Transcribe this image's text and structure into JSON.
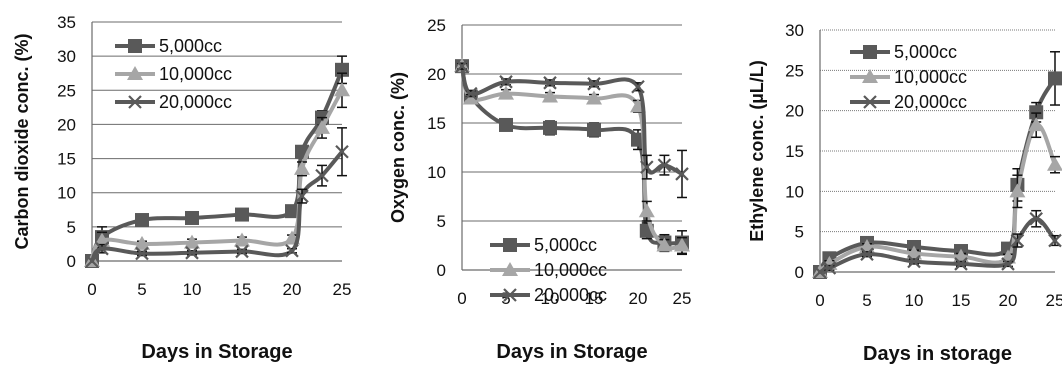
{
  "chart_data": [
    {
      "type": "line",
      "title": "",
      "xlabel": "Days in Storage",
      "ylabel": "Carbon dioxide conc. (%)",
      "xlim": [
        0,
        25
      ],
      "ylim": [
        0,
        35
      ],
      "xticks": [
        "0",
        "5",
        "10",
        "15",
        "20",
        "25"
      ],
      "yticks": [
        "0",
        "5",
        "10",
        "15",
        "20",
        "25",
        "30",
        "35"
      ],
      "grid": "horizontal",
      "legend_position": "top-left",
      "series": [
        {
          "name": "5,000cc",
          "color": "#595959",
          "marker": "square",
          "x": [
            0,
            1,
            5,
            10,
            15,
            20,
            21,
            23,
            25
          ],
          "y": [
            0,
            3.5,
            6,
            6.3,
            6.8,
            7.3,
            16,
            21,
            28
          ],
          "err": [
            0,
            1.5,
            0.5,
            0.6,
            0.5,
            0.5,
            0.8,
            1,
            2
          ]
        },
        {
          "name": "10,000cc",
          "color": "#a6a6a6",
          "marker": "triangle",
          "x": [
            0,
            1,
            5,
            10,
            15,
            20,
            21,
            23,
            25
          ],
          "y": [
            0,
            3,
            2.5,
            2.7,
            3,
            3.3,
            13.5,
            19.5,
            25
          ],
          "err": [
            0,
            1.2,
            0.4,
            0.5,
            0.5,
            0.5,
            1,
            1.5,
            2.5
          ]
        },
        {
          "name": "20,000cc",
          "color": "#595959",
          "marker": "x",
          "x": [
            0,
            1,
            5,
            10,
            15,
            20,
            21,
            23,
            25
          ],
          "y": [
            0,
            1.8,
            1.1,
            1.2,
            1.4,
            1.5,
            9.5,
            12.5,
            16
          ],
          "err": [
            0,
            0.6,
            0.3,
            0.3,
            0.3,
            0.3,
            1,
            1.5,
            3.5
          ]
        }
      ]
    },
    {
      "type": "line",
      "title": "",
      "xlabel": "Days in Storage",
      "ylabel": "Oxygen conc. (%)",
      "xlim": [
        0,
        25
      ],
      "ylim": [
        0,
        25
      ],
      "xticks": [
        "0",
        "5",
        "10",
        "15",
        "20",
        "25"
      ],
      "yticks": [
        "0",
        "5",
        "10",
        "15",
        "20",
        "25"
      ],
      "grid": "horizontal",
      "legend_position": "bottom-left",
      "series": [
        {
          "name": "5,000cc",
          "color": "#595959",
          "marker": "square",
          "x": [
            0,
            1,
            5,
            10,
            15,
            20,
            21,
            23,
            25
          ],
          "y": [
            20.8,
            17.7,
            14.8,
            14.5,
            14.3,
            13.3,
            4,
            2.8,
            2.8
          ],
          "err": [
            0.3,
            0.5,
            0.5,
            0.7,
            0.7,
            1,
            0.8,
            0.8,
            1.2
          ]
        },
        {
          "name": "10,000cc",
          "color": "#a6a6a6",
          "marker": "triangle",
          "x": [
            0,
            1,
            5,
            10,
            15,
            20,
            21,
            23,
            25
          ],
          "y": [
            20.8,
            17.5,
            18,
            17.7,
            17.5,
            16.7,
            6,
            2.5,
            2.5
          ],
          "err": [
            0.3,
            0.4,
            0.4,
            0.4,
            0.4,
            0.6,
            1,
            0.6,
            0.8
          ]
        },
        {
          "name": "20,000cc",
          "color": "#595959",
          "marker": "x",
          "x": [
            0,
            1,
            5,
            10,
            15,
            20,
            21,
            23,
            25
          ],
          "y": [
            20.8,
            18,
            19.2,
            19.1,
            19,
            18.7,
            10.5,
            10.7,
            9.8
          ],
          "err": [
            0.3,
            0.3,
            0.3,
            0.3,
            0.3,
            0.4,
            1.2,
            1,
            2.4
          ]
        }
      ]
    },
    {
      "type": "line",
      "title": "",
      "xlabel": "Days in storage",
      "ylabel": "Ethylene conc. (µL/L)",
      "xlim": [
        0,
        25
      ],
      "ylim": [
        0,
        30
      ],
      "xticks": [
        "0",
        "5",
        "10",
        "15",
        "20",
        "25"
      ],
      "yticks": [
        "0",
        "5",
        "10",
        "15",
        "20",
        "25",
        "30"
      ],
      "grid": "horizontal-dotted",
      "legend_position": "top-left",
      "series": [
        {
          "name": "5,000cc",
          "color": "#595959",
          "marker": "square",
          "x": [
            0,
            1,
            5,
            10,
            15,
            20,
            21,
            23,
            25
          ],
          "y": [
            0,
            1.7,
            3.6,
            3.1,
            2.6,
            2.9,
            10.8,
            19.8,
            24
          ],
          "err": [
            0,
            0.5,
            0.4,
            0.5,
            0.5,
            0.5,
            2,
            1.2,
            3.3
          ]
        },
        {
          "name": "10,000cc",
          "color": "#a6a6a6",
          "marker": "triangle",
          "x": [
            0,
            1,
            5,
            10,
            15,
            20,
            21,
            23,
            25
          ],
          "y": [
            0,
            1,
            3.1,
            2.3,
            1.9,
            1.8,
            10,
            18.2,
            13.3
          ],
          "err": [
            0,
            0.4,
            0.4,
            0.4,
            0.4,
            0.4,
            2,
            1.5,
            1
          ]
        },
        {
          "name": "20,000cc",
          "color": "#595959",
          "marker": "x",
          "x": [
            0,
            1,
            5,
            10,
            15,
            20,
            21,
            23,
            25
          ],
          "y": [
            0,
            0.5,
            2.2,
            1.3,
            1,
            1,
            3.9,
            6.6,
            3.9
          ],
          "err": [
            0,
            0.3,
            0.3,
            0.3,
            0.3,
            0.3,
            0.8,
            1,
            0.6
          ]
        }
      ]
    }
  ]
}
